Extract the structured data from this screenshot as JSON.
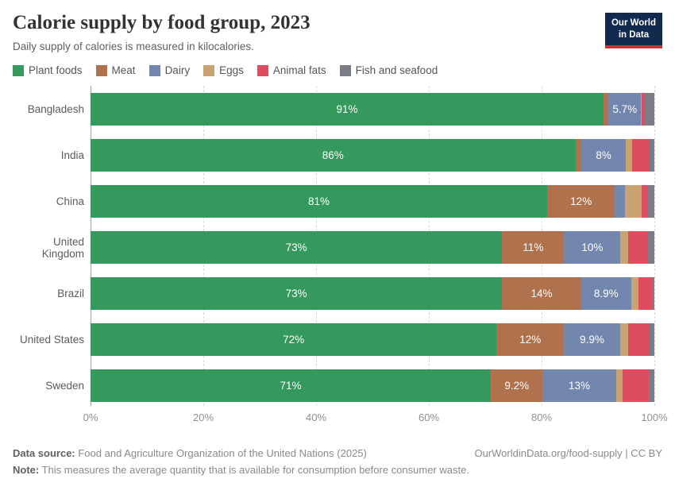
{
  "header": {
    "title": "Calorie supply by food group, 2023",
    "subtitle": "Daily supply of calories is measured in kilocalories.",
    "logo": {
      "line1": "Our World",
      "line2": "in Data",
      "bg_color": "#112A4D",
      "accent_color": "#CC3332"
    }
  },
  "legend": [
    {
      "label": "Plant foods",
      "color": "#35985C"
    },
    {
      "label": "Meat",
      "color": "#B0714D"
    },
    {
      "label": "Dairy",
      "color": "#7286AE"
    },
    {
      "label": "Eggs",
      "color": "#C9A470"
    },
    {
      "label": "Animal fats",
      "color": "#DE4C5F"
    },
    {
      "label": "Fish and seafood",
      "color": "#7A7D86"
    }
  ],
  "chart_data": {
    "type": "bar",
    "orientation": "horizontal",
    "stacked": true,
    "unit": "%",
    "xlim": [
      0,
      100
    ],
    "x_ticks": [
      {
        "label": "0%",
        "pos": 0
      },
      {
        "label": "20%",
        "pos": 20
      },
      {
        "label": "40%",
        "pos": 40
      },
      {
        "label": "60%",
        "pos": 60
      },
      {
        "label": "80%",
        "pos": 80
      },
      {
        "label": "100%",
        "pos": 100
      }
    ],
    "gridlines_pct": [
      20,
      40,
      60,
      80,
      100
    ],
    "series_names": [
      "Plant foods",
      "Meat",
      "Dairy",
      "Eggs",
      "Animal fats",
      "Fish and seafood"
    ],
    "colors": {
      "Plant foods": "#35985C",
      "Meat": "#B0714D",
      "Dairy": "#7286AE",
      "Eggs": "#C9A470",
      "Animal fats": "#DE4C5F",
      "Fish and seafood": "#7A7D86"
    },
    "rows": [
      {
        "country": "Bangladesh",
        "segments": [
          {
            "name": "Plant foods",
            "value": 91,
            "label": "91%"
          },
          {
            "name": "Meat",
            "value": 0.9,
            "label": ""
          },
          {
            "name": "Dairy",
            "value": 5.7,
            "label": "5.7%"
          },
          {
            "name": "Eggs",
            "value": 0.2,
            "label": ""
          },
          {
            "name": "Animal fats",
            "value": 0.5,
            "label": ""
          },
          {
            "name": "Fish and seafood",
            "value": 1.7,
            "label": ""
          }
        ]
      },
      {
        "country": "India",
        "segments": [
          {
            "name": "Plant foods",
            "value": 86,
            "label": "86%"
          },
          {
            "name": "Meat",
            "value": 1.0,
            "label": ""
          },
          {
            "name": "Dairy",
            "value": 8,
            "label": "8%"
          },
          {
            "name": "Eggs",
            "value": 1.0,
            "label": ""
          },
          {
            "name": "Animal fats",
            "value": 3.2,
            "label": ""
          },
          {
            "name": "Fish and seafood",
            "value": 0.8,
            "label": ""
          }
        ]
      },
      {
        "country": "China",
        "segments": [
          {
            "name": "Plant foods",
            "value": 81,
            "label": "81%"
          },
          {
            "name": "Meat",
            "value": 12,
            "label": "12%"
          },
          {
            "name": "Dairy",
            "value": 1.8,
            "label": ""
          },
          {
            "name": "Eggs",
            "value": 2.9,
            "label": ""
          },
          {
            "name": "Animal fats",
            "value": 1.0,
            "label": ""
          },
          {
            "name": "Fish and seafood",
            "value": 1.3,
            "label": ""
          }
        ]
      },
      {
        "country": "United Kingdom",
        "segments": [
          {
            "name": "Plant foods",
            "value": 73,
            "label": "73%"
          },
          {
            "name": "Meat",
            "value": 11,
            "label": "11%"
          },
          {
            "name": "Dairy",
            "value": 10,
            "label": "10%"
          },
          {
            "name": "Eggs",
            "value": 1.4,
            "label": ""
          },
          {
            "name": "Animal fats",
            "value": 3.5,
            "label": ""
          },
          {
            "name": "Fish and seafood",
            "value": 1.1,
            "label": ""
          }
        ]
      },
      {
        "country": "Brazil",
        "segments": [
          {
            "name": "Plant foods",
            "value": 73,
            "label": "73%"
          },
          {
            "name": "Meat",
            "value": 14,
            "label": "14%"
          },
          {
            "name": "Dairy",
            "value": 8.9,
            "label": "8.9%"
          },
          {
            "name": "Eggs",
            "value": 1.3,
            "label": ""
          },
          {
            "name": "Animal fats",
            "value": 2.4,
            "label": ""
          },
          {
            "name": "Fish and seafood",
            "value": 0.4,
            "label": ""
          }
        ]
      },
      {
        "country": "United States",
        "segments": [
          {
            "name": "Plant foods",
            "value": 72,
            "label": "72%"
          },
          {
            "name": "Meat",
            "value": 12,
            "label": "12%"
          },
          {
            "name": "Dairy",
            "value": 9.9,
            "label": "9.9%"
          },
          {
            "name": "Eggs",
            "value": 1.5,
            "label": ""
          },
          {
            "name": "Animal fats",
            "value": 3.7,
            "label": ""
          },
          {
            "name": "Fish and seafood",
            "value": 0.9,
            "label": ""
          }
        ]
      },
      {
        "country": "Sweden",
        "segments": [
          {
            "name": "Plant foods",
            "value": 71,
            "label": "71%"
          },
          {
            "name": "Meat",
            "value": 9.2,
            "label": "9.2%"
          },
          {
            "name": "Dairy",
            "value": 13,
            "label": "13%"
          },
          {
            "name": "Eggs",
            "value": 1.2,
            "label": ""
          },
          {
            "name": "Animal fats",
            "value": 4.6,
            "label": ""
          },
          {
            "name": "Fish and seafood",
            "value": 1.0,
            "label": ""
          }
        ]
      }
    ]
  },
  "footer": {
    "source_label": "Data source:",
    "source_text": " Food and Agriculture Organization of the United Nations (2025)",
    "link_text": "OurWorldinData.org/food-supply",
    "license_text": " | CC BY",
    "note_label": "Note:",
    "note_text": " This measures the average quantity that is available for consumption before consumer waste."
  }
}
